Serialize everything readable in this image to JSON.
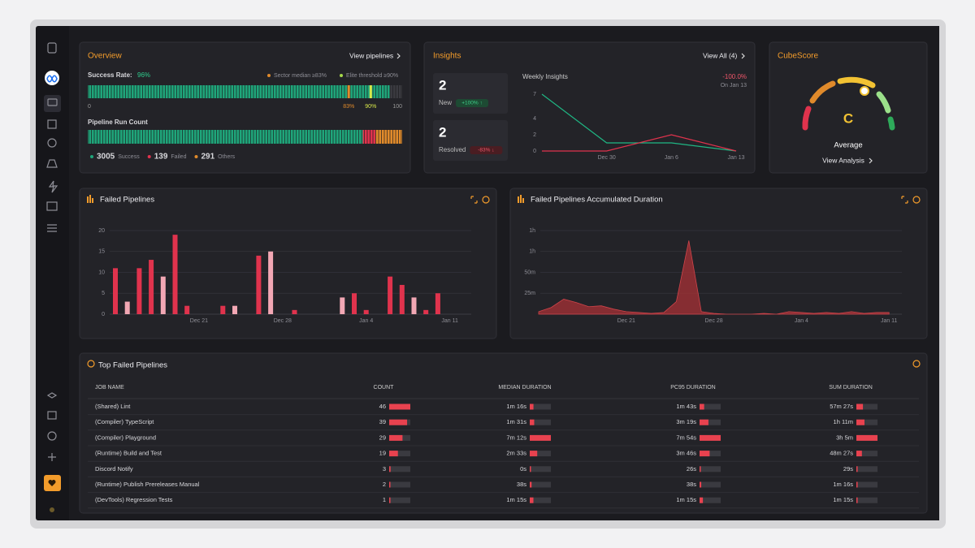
{
  "overview": {
    "title": "Overview",
    "link": "View pipelines",
    "success": {
      "label": "Success Rate:",
      "value": 96,
      "value_label": "96%",
      "legend": [
        "Sector median ≥83%",
        "Elite threshold ≥90%"
      ],
      "xlim": [
        0,
        100
      ],
      "xticks": [
        0,
        {
          "value": 83,
          "label": "83%"
        },
        {
          "value": 90,
          "label": "90%"
        },
        100
      ]
    },
    "run_count": {
      "title": "Pipeline Run Count",
      "categories": [
        "Success",
        "Failed",
        "Others"
      ],
      "values": [
        3005,
        139,
        291
      ],
      "colors": [
        "#1fa57a",
        "#e0334d",
        "#e08a2b"
      ]
    }
  },
  "insights": {
    "title": "Insights",
    "link": "View All (4)",
    "cards": [
      {
        "value": 2,
        "label": "New",
        "change": "+100% ↑"
      },
      {
        "value": 2,
        "label": "Resolved",
        "change": "-83% ↓"
      }
    ],
    "chart": {
      "type": "line",
      "title": "Weekly Insights",
      "change": "-100.0%",
      "date": "On Jan 13",
      "categories": [
        null,
        "Dec 30",
        "Jan 6",
        "Jan 13"
      ],
      "series": [
        {
          "color": "#1fb784",
          "values": [
            7,
            1,
            1,
            0
          ]
        },
        {
          "color": "#e0334d",
          "values": [
            0,
            0,
            2,
            0
          ]
        }
      ],
      "ylim": [
        0,
        7
      ],
      "yticks": [
        0,
        2,
        4,
        7
      ]
    }
  },
  "cubescore": {
    "title": "CubeScore",
    "grade": "C",
    "rating": "Average",
    "link": "View Analysis"
  },
  "failed_pipelines": {
    "type": "bar",
    "title": "Failed Pipelines",
    "categories": [
      null,
      null,
      null,
      null,
      null,
      null,
      null,
      "Dec 21",
      null,
      null,
      null,
      null,
      null,
      null,
      "Dec 28",
      null,
      null,
      null,
      null,
      null,
      null,
      "Jan 4",
      null,
      null,
      null,
      null,
      null,
      null,
      "Jan 11"
    ],
    "values": [
      11,
      3,
      11,
      13,
      9,
      19,
      2,
      0,
      0,
      2,
      2,
      0,
      14,
      15,
      0,
      1,
      0,
      0,
      0,
      4,
      5,
      1,
      0,
      9,
      7,
      4,
      1,
      5,
      0
    ],
    "color": "#e0334d",
    "ylim": [
      0,
      20
    ],
    "yticks": [
      0,
      5,
      10,
      15,
      20
    ],
    "grid": true
  },
  "accumulated_duration": {
    "type": "area",
    "title": "Failed Pipelines Accumulated Duration",
    "categories": [
      null,
      null,
      null,
      null,
      null,
      null,
      null,
      "Dec 21",
      null,
      null,
      null,
      null,
      null,
      null,
      "Dec 28",
      null,
      null,
      null,
      null,
      null,
      null,
      "Jan 4",
      null,
      null,
      null,
      null,
      null,
      null,
      "Jan 11"
    ],
    "values": [
      3,
      8,
      18,
      14,
      9,
      10,
      6,
      3,
      2,
      1,
      2,
      15,
      88,
      3,
      1,
      0,
      0,
      0,
      1,
      0,
      3,
      2,
      1,
      2,
      1,
      3,
      1,
      2,
      2
    ],
    "color": "#a83236",
    "ylim": [
      0,
      100
    ],
    "yticks": [
      {
        "value": 25,
        "label": "25m"
      },
      {
        "value": 50,
        "label": "50m"
      },
      {
        "value": 75,
        "label": "1h"
      },
      {
        "value": 100,
        "label": "1h"
      }
    ],
    "grid": true
  },
  "top_failed": {
    "title": "Top Failed Pipelines",
    "columns": [
      "JOB NAME",
      "COUNT",
      "MEDIAN DURATION",
      "PC95 DURATION",
      "SUM DURATION"
    ],
    "rows": [
      [
        "(Shared) Lint",
        46,
        {
          "value": 76,
          "label": "1m 16s"
        },
        {
          "value": 103,
          "label": "1m 43s"
        },
        {
          "value": 3447,
          "label": "57m 27s"
        }
      ],
      [
        "(Compiler) TypeScript",
        39,
        {
          "value": 91,
          "label": "1m 31s"
        },
        {
          "value": 199,
          "label": "3m 19s"
        },
        {
          "value": 4260,
          "label": "1h 11m"
        }
      ],
      [
        "(Compiler) Playground",
        29,
        {
          "value": 432,
          "label": "7m 12s"
        },
        {
          "value": 474,
          "label": "7m 54s"
        },
        {
          "value": 11100,
          "label": "3h 5m"
        }
      ],
      [
        "(Runtime) Build and Test",
        19,
        {
          "value": 153,
          "label": "2m 33s"
        },
        {
          "value": 226,
          "label": "3m 46s"
        },
        {
          "value": 2907,
          "label": "48m 27s"
        }
      ],
      [
        "Discord Notify",
        3,
        {
          "value": 0,
          "label": "0s"
        },
        {
          "value": 26,
          "label": "26s"
        },
        {
          "value": 29,
          "label": "29s"
        }
      ],
      [
        "(Runtime) Publish Prereleases Manual",
        2,
        {
          "value": 38,
          "label": "38s"
        },
        {
          "value": 38,
          "label": "38s"
        },
        {
          "value": 76,
          "label": "1m 16s"
        }
      ],
      [
        "(DevTools) Regression Tests",
        1,
        {
          "value": 75,
          "label": "1m 15s"
        },
        {
          "value": 75,
          "label": "1m 15s"
        },
        {
          "value": 75,
          "label": "1m 15s"
        }
      ]
    ]
  }
}
